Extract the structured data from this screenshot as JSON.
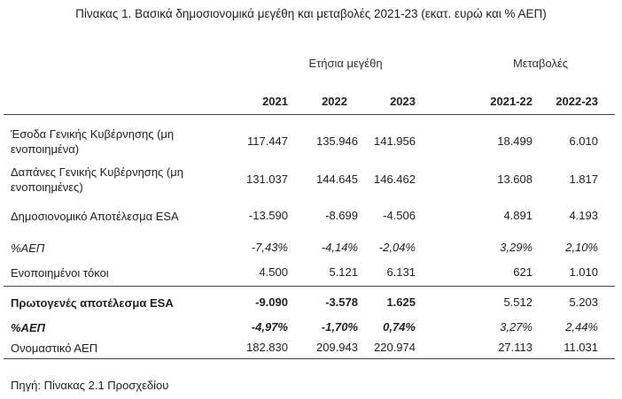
{
  "title": "Πίνακας 1. Βασικά δημοσιονομικά μεγέθη και μεταβολές 2021-23 (εκατ. ευρώ και % ΑΕΠ)",
  "groups": {
    "annual": "Ετήσια μεγέθη",
    "changes": "Μεταβολές"
  },
  "columns": [
    "2021",
    "2022",
    "2023",
    "2021-22",
    "2022-23"
  ],
  "rows": [
    {
      "label": "Έσοδα Γενικής Κυβέρνησης (μη ενοποιημένα)",
      "values": [
        "117.447",
        "135.946",
        "141.956",
        "18.499",
        "6.010"
      ]
    },
    {
      "label": "Δαπάνες Γενικής Κυβέρνησης (μη ενοποιημένες)",
      "values": [
        "131.037",
        "144.645",
        "146.462",
        "13.608",
        "1.817"
      ]
    },
    {
      "label": "Δημοσιονομικό Αποτέλεσμα ESA",
      "values": [
        "-13.590",
        "-8.699",
        "-4.506",
        "4.891",
        "4.193"
      ]
    },
    {
      "label": "%ΑΕΠ",
      "values": [
        "-7,43%",
        "-4,14%",
        "-2,04%",
        "3,29%",
        "2,10%"
      ]
    },
    {
      "label": "Ενοποιημένοι τόκοι",
      "values": [
        "4.500",
        "5.121",
        "6.131",
        "621",
        "1.010"
      ]
    },
    {
      "label": "Πρωτογενές αποτέλεσμα ESA",
      "values": [
        "-9.090",
        "-3.578",
        "1.625",
        "5.512",
        "5.203"
      ]
    },
    {
      "label": "%ΑΕΠ",
      "values": [
        "-4,97%",
        "-1,70%",
        "0,74%",
        "3,27%",
        "2,44%"
      ]
    },
    {
      "label": "Ονομαστικό ΑΕΠ",
      "values": [
        "182.830",
        "209.943",
        "220.974",
        "27.113",
        "11.031"
      ]
    }
  ],
  "source": "Πηγή: Πίνακας 2.1 Προσχεδίου"
}
